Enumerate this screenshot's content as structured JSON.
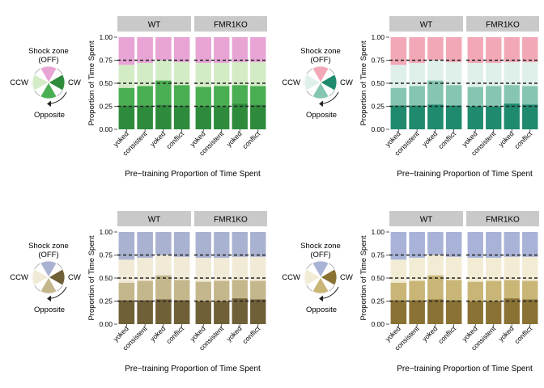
{
  "chart_data": [
    {
      "type": "bar",
      "stacked": true,
      "ylabel": "Proportion of Time Spent",
      "xlabel": "Pre−training Proportion of Time Spent",
      "ylim": [
        0,
        1
      ],
      "yticks": [
        "0.00",
        "0.25",
        "0.50",
        "0.75",
        "1.00"
      ],
      "reference_lines": [
        0.25,
        0.5,
        0.75
      ],
      "facets": [
        "WT",
        "FMR1KO"
      ],
      "categories": [
        "yoked",
        "consistent",
        "yoked",
        "conflict"
      ],
      "colors": {
        "opposite": "#2e8b3c",
        "cw": "#4aae52",
        "ccw": "#d3ecc6",
        "shock": "#e7a4d4",
        "strip": "#c9c9c9"
      },
      "series": [
        {
          "facet": "WT",
          "bars": [
            {
              "opposite": 0.26,
              "cw": 0.19,
              "ccw": 0.25,
              "shock": 0.3
            },
            {
              "opposite": 0.26,
              "cw": 0.21,
              "ccw": 0.25,
              "shock": 0.28
            },
            {
              "opposite": 0.27,
              "cw": 0.26,
              "ccw": 0.22,
              "shock": 0.25
            },
            {
              "opposite": 0.26,
              "cw": 0.22,
              "ccw": 0.25,
              "shock": 0.27
            }
          ]
        },
        {
          "facet": "FMR1KO",
          "bars": [
            {
              "opposite": 0.25,
              "cw": 0.21,
              "ccw": 0.26,
              "shock": 0.28
            },
            {
              "opposite": 0.25,
              "cw": 0.22,
              "ccw": 0.25,
              "shock": 0.28
            },
            {
              "opposite": 0.28,
              "cw": 0.2,
              "ccw": 0.25,
              "shock": 0.27
            },
            {
              "opposite": 0.27,
              "cw": 0.2,
              "ccw": 0.26,
              "shock": 0.27
            }
          ]
        }
      ],
      "legend": {
        "shock_label": "Shock zone",
        "off_label": "(OFF)",
        "ccw_label": "CCW",
        "cw_label": "CW",
        "opposite_label": "Opposite"
      }
    },
    {
      "type": "bar",
      "stacked": true,
      "ylabel": "Proportion of Time Spent",
      "xlabel": "Pre−training Proportion of Time Spent",
      "ylim": [
        0,
        1
      ],
      "yticks": [
        "0.00",
        "0.25",
        "0.50",
        "0.75",
        "1.00"
      ],
      "reference_lines": [
        0.25,
        0.5,
        0.75
      ],
      "facets": [
        "WT",
        "FMR1KO"
      ],
      "categories": [
        "yoked",
        "consistent",
        "yoked",
        "conflict"
      ],
      "colors": {
        "opposite": "#1f8a6e",
        "cw": "#86c5b2",
        "ccw": "#dff0ea",
        "shock": "#f2a8b6",
        "strip": "#c9c9c9"
      },
      "series": [
        {
          "facet": "WT",
          "bars": [
            {
              "opposite": 0.26,
              "cw": 0.19,
              "ccw": 0.25,
              "shock": 0.3
            },
            {
              "opposite": 0.26,
              "cw": 0.21,
              "ccw": 0.25,
              "shock": 0.28
            },
            {
              "opposite": 0.27,
              "cw": 0.26,
              "ccw": 0.22,
              "shock": 0.25
            },
            {
              "opposite": 0.26,
              "cw": 0.22,
              "ccw": 0.25,
              "shock": 0.27
            }
          ]
        },
        {
          "facet": "FMR1KO",
          "bars": [
            {
              "opposite": 0.25,
              "cw": 0.21,
              "ccw": 0.26,
              "shock": 0.28
            },
            {
              "opposite": 0.25,
              "cw": 0.22,
              "ccw": 0.25,
              "shock": 0.28
            },
            {
              "opposite": 0.28,
              "cw": 0.2,
              "ccw": 0.25,
              "shock": 0.27
            },
            {
              "opposite": 0.27,
              "cw": 0.2,
              "ccw": 0.26,
              "shock": 0.27
            }
          ]
        }
      ],
      "legend": {
        "shock_label": "Shock zone",
        "off_label": "(OFF)",
        "ccw_label": "CCW",
        "cw_label": "CW",
        "opposite_label": "Opposite"
      }
    },
    {
      "type": "bar",
      "stacked": true,
      "ylabel": "Proportion of Time Spent",
      "xlabel": "Pre−training Proportion of Time Spent",
      "ylim": [
        0,
        1
      ],
      "yticks": [
        "0.00",
        "0.25",
        "0.50",
        "0.75",
        "1.00"
      ],
      "reference_lines": [
        0.25,
        0.5,
        0.75
      ],
      "facets": [
        "WT",
        "FMR1KO"
      ],
      "categories": [
        "yoked",
        "consistent",
        "yoked",
        "conflict"
      ],
      "colors": {
        "opposite": "#6f6037",
        "cw": "#c5b78c",
        "ccw": "#f0ead6",
        "shock": "#aab2d1",
        "strip": "#c9c9c9"
      },
      "series": [
        {
          "facet": "WT",
          "bars": [
            {
              "opposite": 0.26,
              "cw": 0.19,
              "ccw": 0.25,
              "shock": 0.3
            },
            {
              "opposite": 0.26,
              "cw": 0.21,
              "ccw": 0.25,
              "shock": 0.28
            },
            {
              "opposite": 0.27,
              "cw": 0.26,
              "ccw": 0.22,
              "shock": 0.25
            },
            {
              "opposite": 0.26,
              "cw": 0.22,
              "ccw": 0.25,
              "shock": 0.27
            }
          ]
        },
        {
          "facet": "FMR1KO",
          "bars": [
            {
              "opposite": 0.25,
              "cw": 0.21,
              "ccw": 0.26,
              "shock": 0.28
            },
            {
              "opposite": 0.25,
              "cw": 0.22,
              "ccw": 0.25,
              "shock": 0.28
            },
            {
              "opposite": 0.28,
              "cw": 0.2,
              "ccw": 0.25,
              "shock": 0.27
            },
            {
              "opposite": 0.27,
              "cw": 0.2,
              "ccw": 0.26,
              "shock": 0.27
            }
          ]
        }
      ],
      "legend": {
        "shock_label": "Shock zone",
        "off_label": "(OFF)",
        "ccw_label": "CCW",
        "cw_label": "CW",
        "opposite_label": "Opposite"
      }
    },
    {
      "type": "bar",
      "stacked": true,
      "ylabel": "Proportion of Time Spent",
      "xlabel": "Pre−training Proportion of Time Spent",
      "ylim": [
        0,
        1
      ],
      "yticks": [
        "0.00",
        "0.25",
        "0.50",
        "0.75",
        "1.00"
      ],
      "reference_lines": [
        0.25,
        0.5,
        0.75
      ],
      "facets": [
        "WT",
        "FMR1KO"
      ],
      "categories": [
        "yoked",
        "consistent",
        "yoked",
        "conflict"
      ],
      "colors": {
        "opposite": "#8a7234",
        "cw": "#c9b677",
        "ccw": "#f3ecd4",
        "shock": "#a9b3d8",
        "strip": "#c9c9c9"
      },
      "series": [
        {
          "facet": "WT",
          "bars": [
            {
              "opposite": 0.26,
              "cw": 0.19,
              "ccw": 0.25,
              "shock": 0.3
            },
            {
              "opposite": 0.26,
              "cw": 0.21,
              "ccw": 0.25,
              "shock": 0.28
            },
            {
              "opposite": 0.27,
              "cw": 0.26,
              "ccw": 0.22,
              "shock": 0.25
            },
            {
              "opposite": 0.26,
              "cw": 0.22,
              "ccw": 0.25,
              "shock": 0.27
            }
          ]
        },
        {
          "facet": "FMR1KO",
          "bars": [
            {
              "opposite": 0.25,
              "cw": 0.21,
              "ccw": 0.26,
              "shock": 0.28
            },
            {
              "opposite": 0.25,
              "cw": 0.22,
              "ccw": 0.25,
              "shock": 0.28
            },
            {
              "opposite": 0.28,
              "cw": 0.2,
              "ccw": 0.25,
              "shock": 0.27
            },
            {
              "opposite": 0.27,
              "cw": 0.2,
              "ccw": 0.26,
              "shock": 0.27
            }
          ]
        }
      ],
      "legend": {
        "shock_label": "Shock zone",
        "off_label": "(OFF)",
        "ccw_label": "CCW",
        "cw_label": "CW",
        "opposite_label": "Opposite"
      }
    }
  ]
}
